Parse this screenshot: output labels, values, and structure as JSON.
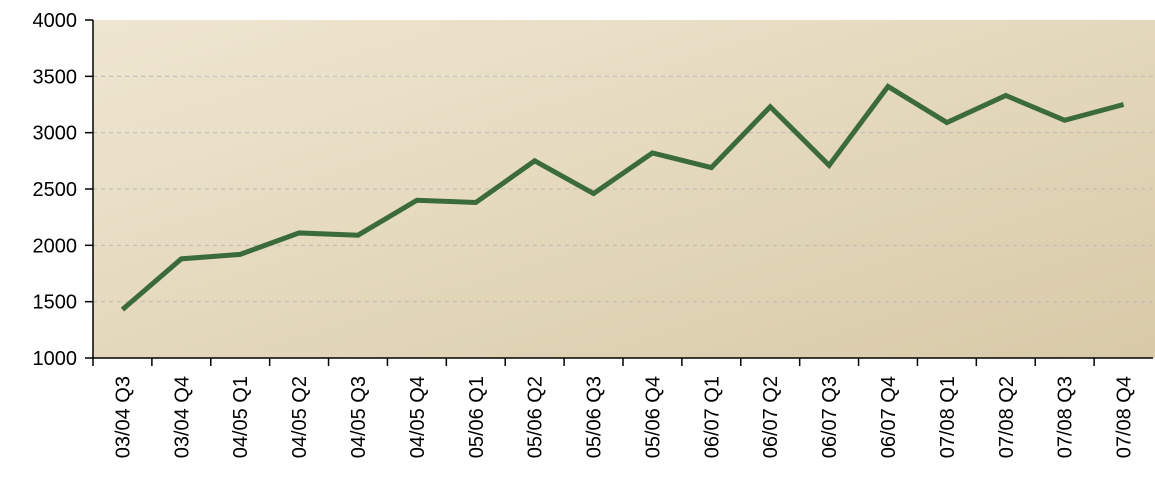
{
  "chart_data": {
    "type": "line",
    "categories": [
      "03/04 Q3",
      "03/04 Q4",
      "04/05 Q1",
      "04/05 Q2",
      "04/05 Q3",
      "04/05 Q4",
      "05/06 Q1",
      "05/06 Q2",
      "05/06 Q3",
      "05/06 Q4",
      "06/07 Q1",
      "06/07 Q2",
      "06/07 Q3",
      "06/07 Q4",
      "07/08 Q1",
      "07/08 Q2",
      "07/08 Q3",
      "07/08 Q4"
    ],
    "series": [
      {
        "color": "#3b6b3b",
        "values": [
          1430,
          1880,
          1920,
          2110,
          2090,
          2400,
          2380,
          2750,
          2460,
          2820,
          2690,
          3230,
          2710,
          3410,
          3090,
          3330,
          3110,
          3250
        ]
      }
    ],
    "ylim": [
      1000,
      4000
    ],
    "yticks": [
      1000,
      1500,
      2000,
      2500,
      3000,
      3500,
      4000
    ],
    "grid": true
  }
}
